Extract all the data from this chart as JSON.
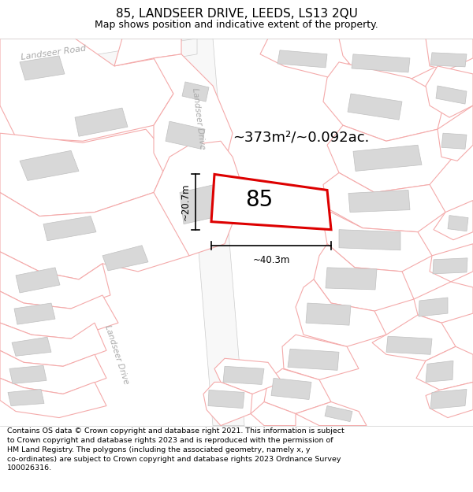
{
  "title": "85, LANDSEER DRIVE, LEEDS, LS13 2QU",
  "subtitle": "Map shows position and indicative extent of the property.",
  "footer": "Contains OS data © Crown copyright and database right 2021. This information is subject to Crown copyright and database rights 2023 and is reproduced with the permission of HM Land Registry. The polygons (including the associated geometry, namely x, y co-ordinates) are subject to Crown copyright and database rights 2023 Ordnance Survey 100026316.",
  "map_bg": "#ffffff",
  "property_outline_color": "#dd0000",
  "property_fill_color": "#ffffff",
  "parcel_outline_color": "#f4aaaa",
  "parcel_fill_color": "#ffffff",
  "building_fill_color": "#d8d8d8",
  "building_edge_color": "#c0c0c0",
  "road_fill": "#f0f0f0",
  "road_label_color": "#aaaaaa",
  "area_text": "~373m²/~0.092ac.",
  "number_text": "85",
  "dim_width": "~40.3m",
  "dim_height": "~20.7m",
  "road_label_1": "Landseer Road",
  "road_label_2": "Landseer Drive",
  "road_label_3": "Landseer Drive",
  "title_fontsize": 11,
  "subtitle_fontsize": 9,
  "footer_fontsize": 6.8
}
